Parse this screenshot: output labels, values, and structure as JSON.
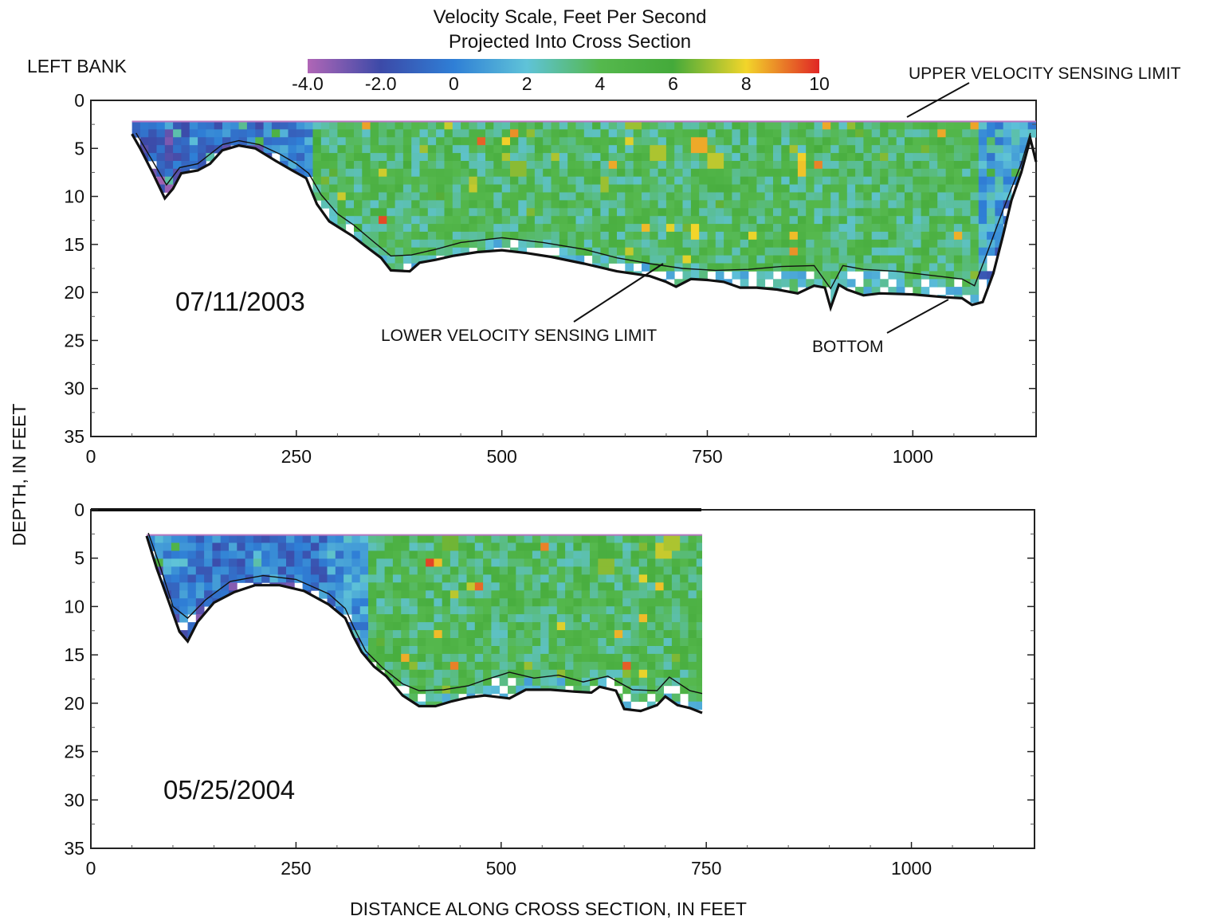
{
  "figure": {
    "scale_title_1": "Velocity Scale, Feet Per Second",
    "scale_title_2": "Projected Into Cross Section",
    "left_bank_label": "LEFT BANK",
    "y_axis_title": "DEPTH, IN FEET",
    "x_axis_title": "DISTANCE ALONG CROSS SECTION, IN FEET"
  },
  "colorbar": {
    "min": -4,
    "max": 10,
    "tick_labels": [
      "-4.0",
      "-2.0",
      "0",
      "2",
      "4",
      "6",
      "8",
      "10"
    ],
    "tick_values": [
      -4,
      -2,
      0,
      2,
      4,
      6,
      8,
      10
    ],
    "colors": [
      "#b066b6",
      "#3c4aa8",
      "#2f7fd6",
      "#5fc3d8",
      "#55b84d",
      "#44aa3a",
      "#f2d52a",
      "#e02525"
    ]
  },
  "chart_data": [
    {
      "type": "heatmap",
      "label": "07/11/2003",
      "xlim": [
        0,
        1150
      ],
      "ylim": [
        35,
        0
      ],
      "x_ticks": [
        0,
        250,
        500,
        750,
        1000
      ],
      "x_tick_labels": [
        "0",
        "250",
        "500",
        "750",
        "1000"
      ],
      "y_ticks": [
        0,
        5,
        10,
        15,
        20,
        25,
        30,
        35
      ],
      "y_tick_labels": [
        "0",
        "5",
        "10",
        "15",
        "20",
        "25",
        "30",
        "35"
      ],
      "value_units": "feet per second",
      "upper_sensing_limit_depth": 2.2,
      "data_x_range": [
        50,
        1150
      ],
      "bottom_profile": [
        [
          50,
          3.5
        ],
        [
          60,
          5
        ],
        [
          75,
          7.5
        ],
        [
          90,
          10.2
        ],
        [
          100,
          9.2
        ],
        [
          110,
          7.6
        ],
        [
          130,
          7.3
        ],
        [
          145,
          6.6
        ],
        [
          160,
          5.2
        ],
        [
          180,
          4.7
        ],
        [
          200,
          5
        ],
        [
          225,
          6.3
        ],
        [
          245,
          7.3
        ],
        [
          262,
          8.1
        ],
        [
          275,
          10.8
        ],
        [
          290,
          12.6
        ],
        [
          305,
          13.4
        ],
        [
          318,
          14.1
        ],
        [
          333,
          15.1
        ],
        [
          353,
          16.4
        ],
        [
          365,
          17.7
        ],
        [
          388,
          17.8
        ],
        [
          400,
          16.9
        ],
        [
          420,
          16.6
        ],
        [
          440,
          16.2
        ],
        [
          470,
          15.8
        ],
        [
          500,
          15.6
        ],
        [
          530,
          15.9
        ],
        [
          560,
          16.3
        ],
        [
          600,
          17
        ],
        [
          640,
          17.8
        ],
        [
          680,
          18.3
        ],
        [
          700,
          18.9
        ],
        [
          712,
          19.4
        ],
        [
          730,
          18.6
        ],
        [
          750,
          18.7
        ],
        [
          770,
          18.9
        ],
        [
          790,
          19.5
        ],
        [
          810,
          19.5
        ],
        [
          835,
          19.7
        ],
        [
          860,
          20.1
        ],
        [
          880,
          19.3
        ],
        [
          893,
          19.5
        ],
        [
          900,
          21.6
        ],
        [
          910,
          19.2
        ],
        [
          920,
          19.7
        ],
        [
          940,
          20.3
        ],
        [
          960,
          20.1
        ],
        [
          1000,
          20.2
        ],
        [
          1040,
          20.5
        ],
        [
          1060,
          20.6
        ],
        [
          1072,
          21.3
        ],
        [
          1085,
          21
        ],
        [
          1098,
          18
        ],
        [
          1110,
          14
        ],
        [
          1120,
          10.4
        ],
        [
          1132,
          7.5
        ],
        [
          1143,
          4
        ],
        [
          1150,
          6.4
        ]
      ],
      "lower_sensing_limit": [
        [
          55,
          3.4
        ],
        [
          75,
          6.3
        ],
        [
          92,
          8.8
        ],
        [
          108,
          7
        ],
        [
          130,
          6.6
        ],
        [
          160,
          4.6
        ],
        [
          180,
          4.2
        ],
        [
          205,
          4.6
        ],
        [
          230,
          5.6
        ],
        [
          250,
          6.6
        ],
        [
          265,
          7.6
        ],
        [
          280,
          9.8
        ],
        [
          300,
          11.8
        ],
        [
          320,
          13
        ],
        [
          345,
          14.8
        ],
        [
          365,
          16.2
        ],
        [
          390,
          16.1
        ],
        [
          420,
          15.5
        ],
        [
          450,
          14.8
        ],
        [
          500,
          14.3
        ],
        [
          550,
          14.8
        ],
        [
          600,
          15.5
        ],
        [
          640,
          16.4
        ],
        [
          680,
          17
        ],
        [
          720,
          17.5
        ],
        [
          760,
          17.7
        ],
        [
          800,
          17.6
        ],
        [
          840,
          17.3
        ],
        [
          880,
          17.2
        ],
        [
          900,
          19.6
        ],
        [
          915,
          17.2
        ],
        [
          940,
          17.6
        ],
        [
          980,
          17.8
        ],
        [
          1020,
          18.2
        ],
        [
          1060,
          18.6
        ],
        [
          1075,
          19.3
        ],
        [
          1090,
          16
        ],
        [
          1105,
          12.5
        ],
        [
          1118,
          9.6
        ],
        [
          1132,
          6.6
        ],
        [
          1143,
          3.4
        ]
      ],
      "dominant_ranges": [
        [
          50,
          110,
          -1.5
        ],
        [
          110,
          225,
          -0.6
        ],
        [
          225,
          275,
          0.2
        ],
        [
          275,
          1080,
          3.8
        ],
        [
          1080,
          1150,
          1.2
        ]
      ],
      "hot_cells": [
        [
          738,
          5,
          8.5
        ],
        [
          690,
          5.8,
          7.2
        ],
        [
          865,
          7.5,
          8.2
        ],
        [
          735,
          14,
          8
        ],
        [
          760,
          6.6,
          7.4
        ],
        [
          625,
          9,
          7
        ],
        [
          520,
          7,
          6.8
        ],
        [
          660,
          2.4,
          7
        ]
      ]
    },
    {
      "type": "heatmap",
      "label": "05/25/2004",
      "xlim": [
        0,
        1150
      ],
      "ylim": [
        35,
        0
      ],
      "x_ticks": [
        0,
        250,
        500,
        750,
        1000
      ],
      "x_tick_labels": [
        "0",
        "250",
        "500",
        "750",
        "1000"
      ],
      "y_ticks": [
        0,
        5,
        10,
        15,
        20,
        25,
        30,
        35
      ],
      "y_tick_labels": [
        "0",
        "5",
        "10",
        "15",
        "20",
        "25",
        "30",
        "35"
      ],
      "value_units": "feet per second",
      "upper_sensing_limit_depth": 2.6,
      "data_x_range": [
        68,
        745
      ],
      "bottom_profile": [
        [
          68,
          2.7
        ],
        [
          80,
          6
        ],
        [
          95,
          9.5
        ],
        [
          108,
          12.6
        ],
        [
          118,
          13.6
        ],
        [
          130,
          11.6
        ],
        [
          150,
          9.6
        ],
        [
          175,
          8.5
        ],
        [
          200,
          7.8
        ],
        [
          230,
          7.8
        ],
        [
          260,
          8.4
        ],
        [
          290,
          9.8
        ],
        [
          310,
          11.2
        ],
        [
          320,
          13.1
        ],
        [
          330,
          14.7
        ],
        [
          345,
          16.2
        ],
        [
          360,
          17.2
        ],
        [
          380,
          19.2
        ],
        [
          400,
          20.3
        ],
        [
          420,
          20.3
        ],
        [
          440,
          19.8
        ],
        [
          460,
          19.4
        ],
        [
          480,
          19.2
        ],
        [
          510,
          19.5
        ],
        [
          530,
          18.6
        ],
        [
          560,
          18.6
        ],
        [
          590,
          18.8
        ],
        [
          610,
          18.9
        ],
        [
          620,
          18.3
        ],
        [
          640,
          18.7
        ],
        [
          650,
          20.6
        ],
        [
          670,
          20.8
        ],
        [
          690,
          20.2
        ],
        [
          700,
          19.3
        ],
        [
          715,
          20.2
        ],
        [
          730,
          20.5
        ],
        [
          745,
          21
        ]
      ],
      "lower_sensing_limit": [
        [
          70,
          2.4
        ],
        [
          85,
          6
        ],
        [
          100,
          10
        ],
        [
          118,
          11.2
        ],
        [
          140,
          9.3
        ],
        [
          170,
          7.4
        ],
        [
          210,
          6.8
        ],
        [
          250,
          7.2
        ],
        [
          290,
          8.7
        ],
        [
          310,
          10.2
        ],
        [
          320,
          12.1
        ],
        [
          335,
          14.6
        ],
        [
          355,
          16.3
        ],
        [
          380,
          18
        ],
        [
          400,
          18.7
        ],
        [
          430,
          18.6
        ],
        [
          460,
          18.2
        ],
        [
          480,
          17.6
        ],
        [
          510,
          16.8
        ],
        [
          540,
          17.4
        ],
        [
          570,
          17.1
        ],
        [
          600,
          17.8
        ],
        [
          630,
          17.2
        ],
        [
          660,
          18.6
        ],
        [
          690,
          18.7
        ],
        [
          705,
          17.3
        ],
        [
          730,
          18.7
        ],
        [
          745,
          19
        ]
      ],
      "dominant_ranges": [
        [
          68,
          120,
          0.5
        ],
        [
          120,
          290,
          -0.3
        ],
        [
          290,
          340,
          0.8
        ],
        [
          340,
          745,
          3.9
        ]
      ],
      "hot_cells": [
        [
          700,
          4.3,
          7.5
        ],
        [
          705,
          3.1,
          7.2
        ],
        [
          625,
          5.5,
          6.8
        ],
        [
          440,
          3.5,
          6.5
        ]
      ]
    }
  ],
  "panels": [
    {
      "date_label": "07/11/2003",
      "annotations": {
        "upper_limit": "UPPER VELOCITY SENSING LIMIT",
        "lower_limit": "LOWER VELOCITY SENSING LIMIT",
        "bottom": "BOTTOM"
      }
    },
    {
      "date_label": "05/25/2004"
    }
  ]
}
